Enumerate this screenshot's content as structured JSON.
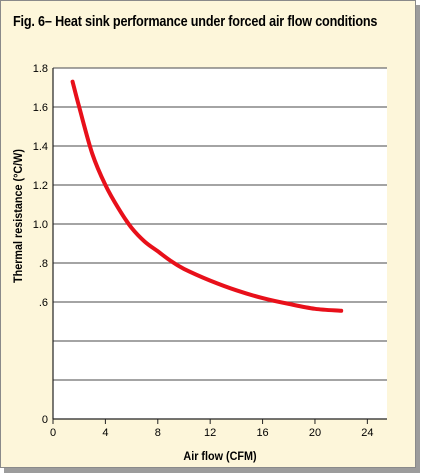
{
  "title": "Fig. 6– Heat sink performance under forced air flow conditions",
  "chart_data": {
    "type": "line",
    "title": "Fig. 6– Heat sink performance under forced air flow conditions",
    "xlabel": "Air flow (CFM)",
    "ylabel": "Thermal resistance (°C/W)",
    "xlim": [
      0,
      25.5
    ],
    "ylim": [
      0,
      1.8
    ],
    "x_ticks": [
      0,
      4,
      8,
      12,
      16,
      20,
      24
    ],
    "x_tick_labels": [
      "0",
      "4",
      "8",
      "12",
      "16",
      "20",
      "24"
    ],
    "y_ticks": [
      0,
      0.2,
      0.4,
      0.6,
      0.8,
      1.0,
      1.2,
      1.4,
      1.6,
      1.8
    ],
    "y_tick_labels": [
      "0",
      "",
      ".6",
      ".8",
      "1.0",
      "1.2",
      "1.4",
      "1.6",
      "1.8"
    ],
    "y_tick_values": [
      0,
      0.2,
      0.6,
      0.8,
      1.0,
      1.2,
      1.4,
      1.6,
      1.8
    ],
    "grid": "horizontal",
    "series_color": "#e8101a",
    "grid_color": "#6e6e6e",
    "series": [
      {
        "x": [
          1.5,
          2,
          3,
          4,
          5,
          6,
          7,
          8,
          9,
          10,
          12,
          14,
          16,
          18,
          20,
          22
        ],
        "values": [
          1.73,
          1.6,
          1.36,
          1.2,
          1.08,
          0.98,
          0.91,
          0.86,
          0.81,
          0.77,
          0.71,
          0.66,
          0.62,
          0.59,
          0.565,
          0.555
        ]
      }
    ]
  }
}
